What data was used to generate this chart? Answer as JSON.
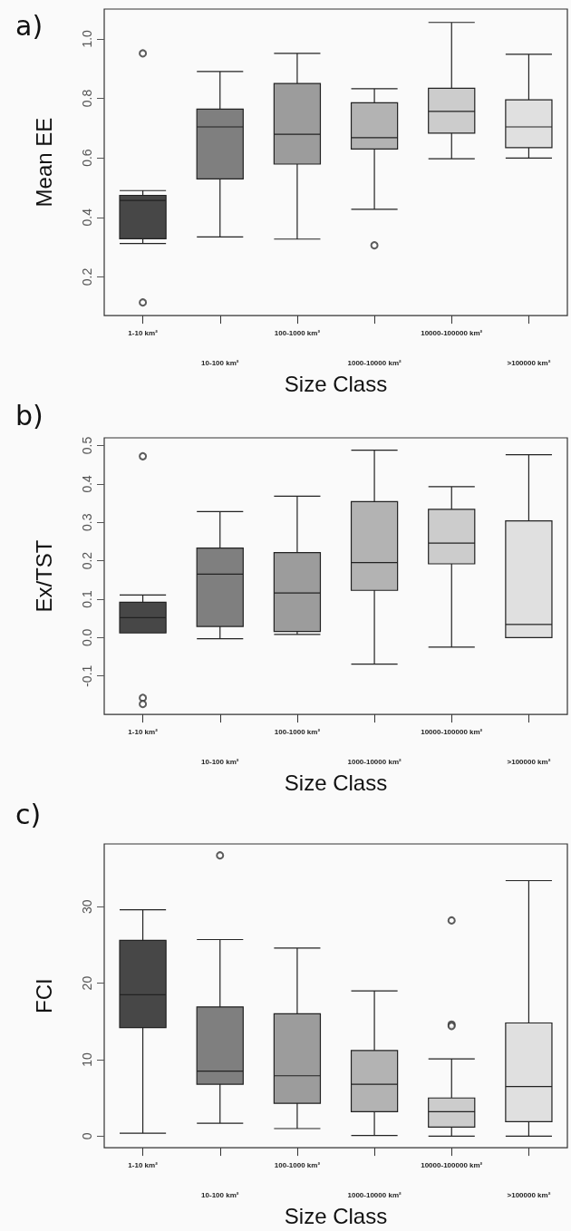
{
  "chart_data": [
    {
      "type": "box",
      "title": "a)",
      "xlabel": "Size Class",
      "ylabel": "Mean EE",
      "categories": [
        "1-10 km²",
        "10-100 km²",
        "100-1000 km²",
        "1000-10000 km²",
        "10000-100000 km²",
        ">100000 km²"
      ],
      "colors": [
        "#474747",
        "#7f7f7f",
        "#9c9c9c",
        "#b3b3b3",
        "#cccccc",
        "#e0e0e0"
      ],
      "boxes": [
        {
          "low": 0.312,
          "q1": 0.328,
          "median": 0.457,
          "q3": 0.474,
          "high": 0.49,
          "outliers": [
            0.951,
            0.114
          ]
        },
        {
          "low": 0.334,
          "q1": 0.529,
          "median": 0.704,
          "q3": 0.764,
          "high": 0.89
        },
        {
          "low": 0.327,
          "q1": 0.579,
          "median": 0.679,
          "q3": 0.85,
          "high": 0.951
        },
        {
          "low": 0.427,
          "q1": 0.63,
          "median": 0.668,
          "q3": 0.785,
          "high": 0.832,
          "outliers": [
            0.306
          ]
        },
        {
          "low": 0.597,
          "q1": 0.683,
          "median": 0.756,
          "q3": 0.834,
          "high": 1.055
        },
        {
          "low": 0.599,
          "q1": 0.634,
          "median": 0.704,
          "q3": 0.795,
          "high": 0.948
        }
      ],
      "ylim": [
        0.07,
        1.1
      ],
      "yticks": [
        0.2,
        0.4,
        0.6,
        0.8,
        {
          "value": 1,
          "label": "1.0"
        }
      ],
      "grid": false
    },
    {
      "type": "box",
      "title": "b)",
      "xlabel": "Size Class",
      "ylabel": "Ex/TST",
      "categories": [
        "1-10 km²",
        "10-100 km²",
        "100-1000 km²",
        "1000-10000 km²",
        "10000-100000 km²",
        ">100000 km²"
      ],
      "colors": [
        "#474747",
        "#7f7f7f",
        "#9c9c9c",
        "#b3b3b3",
        "#cccccc",
        "#e0e0e0"
      ],
      "boxes": [
        {
          "low": 0.012,
          "q1": 0.012,
          "median": 0.052,
          "q3": 0.092,
          "high": 0.111,
          "outliers": [
            0.472,
            -0.157,
            -0.173
          ]
        },
        {
          "low": -0.003,
          "q1": 0.029,
          "median": 0.165,
          "q3": 0.233,
          "high": 0.328
        },
        {
          "low": 0.008,
          "q1": 0.016,
          "median": 0.116,
          "q3": 0.221,
          "high": 0.368
        },
        {
          "low": -0.069,
          "q1": 0.123,
          "median": 0.195,
          "q3": 0.354,
          "high": 0.488
        },
        {
          "low": -0.025,
          "q1": 0.192,
          "median": 0.246,
          "q3": 0.334,
          "high": 0.393
        },
        {
          "low": 0,
          "q1": 0,
          "median": 0.034,
          "q3": 0.304,
          "high": 0.476
        }
      ],
      "ylim": [
        -0.2,
        0.52
      ],
      "yticks": [
        -0.1,
        {
          "value": 0,
          "label": "0.0"
        },
        0.1,
        0.2,
        0.3,
        0.4,
        0.5
      ],
      "grid": false
    },
    {
      "type": "box",
      "title": "c)",
      "xlabel": "Size Class",
      "ylabel": "FCI",
      "categories": [
        "1-10 km²",
        "10-100 km²",
        "100-1000 km²",
        "1000-10000 km²",
        "10000-100000 km²",
        ">100000 km²"
      ],
      "colors": [
        "#474747",
        "#7f7f7f",
        "#9c9c9c",
        "#b3b3b3",
        "#cccccc",
        "#e0e0e0"
      ],
      "boxes": [
        {
          "low": 0.4,
          "q1": 14.2,
          "median": 18.5,
          "q3": 25.6,
          "high": 29.6
        },
        {
          "low": 1.7,
          "q1": 6.8,
          "median": 8.5,
          "q3": 16.9,
          "high": 25.7,
          "outliers": [
            36.7
          ]
        },
        {
          "low": 1,
          "q1": 4.3,
          "median": 7.9,
          "q3": 16,
          "high": 24.6
        },
        {
          "low": 0.1,
          "q1": 3.2,
          "median": 6.8,
          "q3": 11.2,
          "high": 19
        },
        {
          "low": 0,
          "q1": 1.2,
          "median": 3.2,
          "q3": 5,
          "high": 10.1,
          "outliers": [
            28.2,
            14.6,
            14.4
          ]
        },
        {
          "low": 0,
          "q1": 1.9,
          "median": 6.5,
          "q3": 14.8,
          "high": 33.4
        }
      ],
      "ylim": [
        -1.5,
        38.2
      ],
      "yticks": [
        0,
        10,
        20,
        30
      ],
      "grid": false
    }
  ]
}
